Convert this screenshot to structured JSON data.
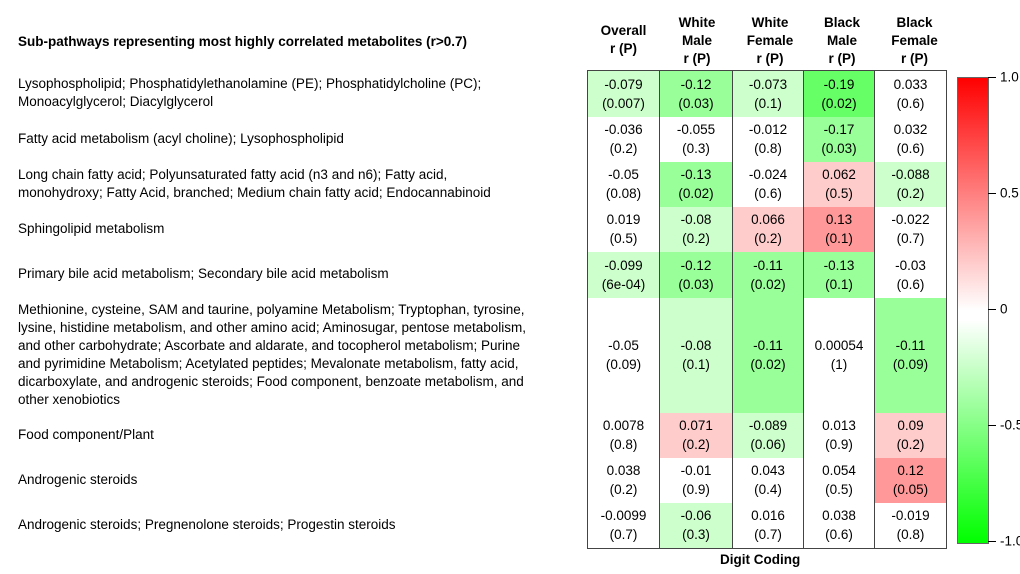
{
  "chart_data": {
    "type": "heatmap",
    "title": "Sub-pathways representing most highly correlated metabolites (r>0.7)",
    "xlabel": "Digit Coding",
    "columns": [
      [
        "Overall",
        "r (P)"
      ],
      [
        "White",
        "Male",
        "r (P)"
      ],
      [
        "White",
        "Female",
        "r (P)"
      ],
      [
        "Black",
        "Male",
        "r (P)"
      ],
      [
        "Black",
        "Female",
        "r (P)"
      ]
    ],
    "rows": [
      {
        "label": [
          "Lysophospholipid; Phosphatidylethanolamine (PE); Phosphatidylcholine (PC);",
          "Monoacylglycerol; Diacylglycerol"
        ],
        "cells": [
          [
            "-0.079",
            "(0.007)",
            "#ccffcc"
          ],
          [
            "-0.12",
            "(0.03)",
            "#99ff99"
          ],
          [
            "-0.073",
            "(0.1)",
            "#ccffcc"
          ],
          [
            "-0.19",
            "(0.02)",
            "#66ff66"
          ],
          [
            "0.033",
            "(0.6)",
            "#ffffff"
          ]
        ]
      },
      {
        "label": [
          "Fatty acid metabolism (acyl choline); Lysophospholipid"
        ],
        "cells": [
          [
            "-0.036",
            "(0.2)",
            "#ffffff"
          ],
          [
            "-0.055",
            "(0.3)",
            "#ffffff"
          ],
          [
            "-0.012",
            "(0.8)",
            "#ffffff"
          ],
          [
            "-0.17",
            "(0.03)",
            "#99ff99"
          ],
          [
            "0.032",
            "(0.6)",
            "#ffffff"
          ]
        ]
      },
      {
        "label": [
          "Long chain fatty acid; Polyunsaturated fatty acid (n3 and n6); Fatty acid,",
          "monohydroxy; Fatty Acid, branched; Medium chain fatty acid; Endocannabinoid"
        ],
        "cells": [
          [
            "-0.05",
            "(0.08)",
            "#ffffff"
          ],
          [
            "-0.13",
            "(0.02)",
            "#99ff99"
          ],
          [
            "-0.024",
            "(0.6)",
            "#ffffff"
          ],
          [
            "0.062",
            "(0.5)",
            "#ffcccc"
          ],
          [
            "-0.088",
            "(0.2)",
            "#ccffcc"
          ]
        ]
      },
      {
        "label": [
          "Sphingolipid metabolism"
        ],
        "cells": [
          [
            "0.019",
            "(0.5)",
            "#ffffff"
          ],
          [
            "-0.08",
            "(0.2)",
            "#ccffcc"
          ],
          [
            "0.066",
            "(0.2)",
            "#ffcccc"
          ],
          [
            "0.13",
            "(0.1)",
            "#ff9999"
          ],
          [
            "-0.022",
            "(0.7)",
            "#ffffff"
          ]
        ]
      },
      {
        "label": [
          "Primary bile acid metabolism; Secondary bile acid metabolism"
        ],
        "cells": [
          [
            "-0.099",
            "(6e-04)",
            "#ccffcc"
          ],
          [
            "-0.12",
            "(0.03)",
            "#99ff99"
          ],
          [
            "-0.11",
            "(0.02)",
            "#99ff99"
          ],
          [
            "-0.13",
            "(0.1)",
            "#99ff99"
          ],
          [
            "-0.03",
            "(0.6)",
            "#ffffff"
          ]
        ]
      },
      {
        "label": [
          "Methionine, cysteine, SAM and taurine, polyamine Metabolism; Tryptophan, tyrosine,",
          "lysine, histidine metabolism, and other amino acid; Aminosugar, pentose metabolism,",
          "and other carbohydrate; Ascorbate and aldarate, and tocopherol metabolism; Purine",
          "and pyrimidine Metabolism; Acetylated peptides; Mevalonate metabolism, fatty acid,",
          "dicarboxylate, and androgenic steroids; Food component, benzoate metabolism, and",
          "other xenobiotics"
        ],
        "cells": [
          [
            "-0.05",
            "(0.09)",
            "#ffffff"
          ],
          [
            "-0.08",
            "(0.1)",
            "#ccffcc"
          ],
          [
            "-0.11",
            "(0.02)",
            "#99ff99"
          ],
          [
            "0.00054",
            "(1)",
            "#ffffff"
          ],
          [
            "-0.11",
            "(0.09)",
            "#99ff99"
          ]
        ]
      },
      {
        "label": [
          "Food component/Plant"
        ],
        "cells": [
          [
            "0.0078",
            "(0.8)",
            "#ffffff"
          ],
          [
            "0.071",
            "(0.2)",
            "#ffcccc"
          ],
          [
            "-0.089",
            "(0.06)",
            "#ccffcc"
          ],
          [
            "0.013",
            "(0.9)",
            "#ffffff"
          ],
          [
            "0.09",
            "(0.2)",
            "#ffcccc"
          ]
        ]
      },
      {
        "label": [
          "Androgenic steroids"
        ],
        "cells": [
          [
            "0.038",
            "(0.2)",
            "#ffffff"
          ],
          [
            "-0.01",
            "(0.9)",
            "#ffffff"
          ],
          [
            "0.043",
            "(0.4)",
            "#ffffff"
          ],
          [
            "0.054",
            "(0.5)",
            "#ffffff"
          ],
          [
            "0.12",
            "(0.05)",
            "#ff9999"
          ]
        ]
      },
      {
        "label": [
          "Androgenic steroids; Pregnenolone steroids; Progestin steroids"
        ],
        "cells": [
          [
            "-0.0099",
            "(0.7)",
            "#ffffff"
          ],
          [
            "-0.06",
            "(0.3)",
            "#ccffcc"
          ],
          [
            "0.016",
            "(0.7)",
            "#ffffff"
          ],
          [
            "0.038",
            "(0.6)",
            "#ffffff"
          ],
          [
            "-0.019",
            "(0.8)",
            "#ffffff"
          ]
        ]
      }
    ],
    "colorbar": {
      "ticks": [
        "1.0",
        "0.5",
        "0",
        "-0.5",
        "-1.0"
      ],
      "range": [
        -1,
        1
      ],
      "low": "#00ff00",
      "mid": "#ffffff",
      "high": "#ff0000"
    }
  }
}
